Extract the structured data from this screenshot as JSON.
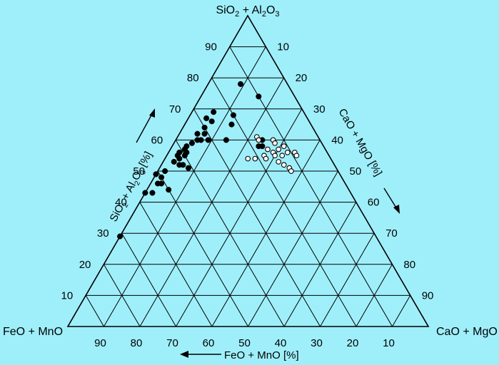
{
  "chart_data": {
    "type": "ternary-scatter",
    "vertices": {
      "top": {
        "text": "SiO",
        "sub1": "2",
        "mid": " + Al",
        "sub2": "2",
        "mid2": "O",
        "sub3": "3"
      },
      "left": {
        "text": "FeO + MnO"
      },
      "right": {
        "text": "CaO + MgO"
      }
    },
    "axis_titles": {
      "left": {
        "text": "SiO",
        "sub1": "2",
        "mid": " + Al",
        "sub2": "2",
        "mid2": "O",
        "sub3": "3",
        "unit": " [%]"
      },
      "right": {
        "text": "CaO + MgO [%]"
      },
      "bottom": {
        "text": "FeO + MnO [%]"
      }
    },
    "left_ticks": [
      "90",
      "80",
      "70",
      "60",
      "50",
      "40",
      "30",
      "20",
      "10"
    ],
    "right_ticks": [
      "10",
      "20",
      "30",
      "40",
      "50",
      "60",
      "70",
      "80",
      "90"
    ],
    "bottom_ticks": [
      "90",
      "80",
      "70",
      "60",
      "50",
      "40",
      "30",
      "20",
      "10"
    ],
    "grid_step": 10,
    "series": [
      {
        "marker": "filled",
        "points": [
          {
            "s": 78,
            "c": 9
          },
          {
            "s": 74,
            "c": 16
          },
          {
            "s": 68,
            "c": 12
          },
          {
            "s": 65,
            "c": 13
          },
          {
            "s": 69,
            "c": 6
          },
          {
            "s": 67,
            "c": 5
          },
          {
            "s": 66,
            "c": 7
          },
          {
            "s": 64,
            "c": 6
          },
          {
            "s": 62,
            "c": 5
          },
          {
            "s": 62,
            "c": 7
          },
          {
            "s": 60,
            "c": 6
          },
          {
            "s": 60,
            "c": 7
          },
          {
            "s": 60,
            "c": 9
          },
          {
            "s": 59,
            "c": 5
          },
          {
            "s": 58,
            "c": 4
          },
          {
            "s": 57,
            "c": 4
          },
          {
            "s": 56,
            "c": 3
          },
          {
            "s": 56,
            "c": 5
          },
          {
            "s": 55,
            "c": 3
          },
          {
            "s": 55,
            "c": 5
          },
          {
            "s": 54,
            "c": 4
          },
          {
            "s": 53,
            "c": 3
          },
          {
            "s": 52,
            "c": 5
          },
          {
            "s": 52,
            "c": 6
          },
          {
            "s": 51,
            "c": 8
          },
          {
            "s": 50,
            "c": 2
          },
          {
            "s": 49,
            "c": 0
          },
          {
            "s": 48,
            "c": 2
          },
          {
            "s": 46,
            "c": 2
          },
          {
            "s": 46,
            "c": 3
          },
          {
            "s": 44,
            "c": 6
          },
          {
            "s": 43,
            "c": 0
          },
          {
            "s": 43,
            "c": 2
          },
          {
            "s": 29,
            "c": 0
          },
          {
            "s": 60,
            "c": 14
          },
          {
            "s": 60,
            "c": 24
          },
          {
            "s": 58,
            "c": 25
          },
          {
            "s": 58,
            "c": 24
          }
        ]
      },
      {
        "marker": "open",
        "points": [
          {
            "s": 61,
            "c": 22
          },
          {
            "s": 60,
            "c": 23
          },
          {
            "s": 60,
            "c": 27
          },
          {
            "s": 59,
            "c": 28
          },
          {
            "s": 57,
            "c": 27
          },
          {
            "s": 57,
            "c": 30
          },
          {
            "s": 56,
            "c": 29
          },
          {
            "s": 55,
            "c": 27
          },
          {
            "s": 55,
            "c": 30
          },
          {
            "s": 54,
            "c": 23
          },
          {
            "s": 54,
            "c": 25
          },
          {
            "s": 54,
            "c": 28
          },
          {
            "s": 55,
            "c": 32
          },
          {
            "s": 53,
            "c": 32
          },
          {
            "s": 56,
            "c": 35
          },
          {
            "s": 55,
            "c": 36
          },
          {
            "s": 52,
            "c": 34
          },
          {
            "s": 51,
            "c": 36
          },
          {
            "s": 50,
            "c": 37
          },
          {
            "s": 56,
            "c": 33
          },
          {
            "s": 58,
            "c": 31
          }
        ]
      }
    ]
  }
}
